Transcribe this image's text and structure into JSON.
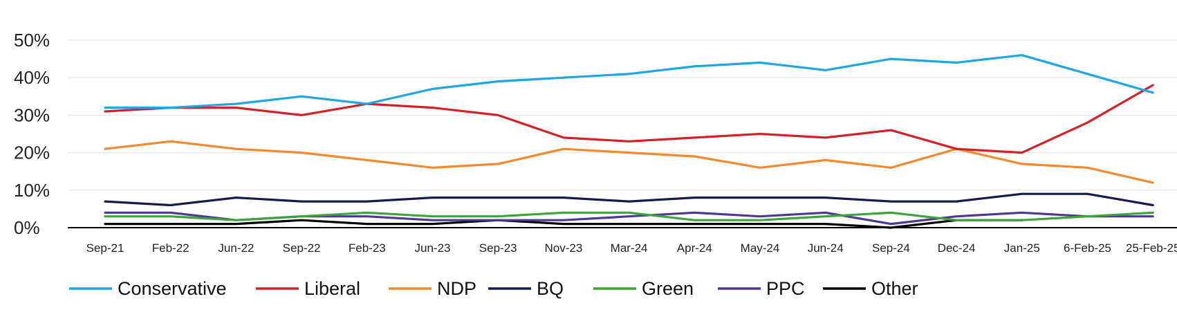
{
  "chart_data": {
    "type": "line",
    "title": "",
    "xlabel": "",
    "ylabel": "",
    "ylim": [
      0,
      50
    ],
    "y_ticks": [
      "0%",
      "10%",
      "20%",
      "30%",
      "40%",
      "50%"
    ],
    "y_tick_values": [
      0,
      10,
      20,
      30,
      40,
      50
    ],
    "grid": true,
    "legend_position": "bottom",
    "categories": [
      "Sep-21",
      "Feb-22",
      "Jun-22",
      "Sep-22",
      "Feb-23",
      "Jun-23",
      "Sep-23",
      "Nov-23",
      "Mar-24",
      "Apr-24",
      "May-24",
      "Jun-24",
      "Sep-24",
      "Dec-24",
      "Jan-25",
      "6-Feb-25",
      "25-Feb-25"
    ],
    "series": [
      {
        "name": "Conservative",
        "color": "#1ea7e1",
        "values": [
          32,
          32,
          33,
          35,
          33,
          37,
          39,
          40,
          41,
          43,
          44,
          42,
          45,
          44,
          46,
          41,
          36
        ]
      },
      {
        "name": "Liberal",
        "color": "#d62027",
        "values": [
          31,
          32,
          32,
          30,
          33,
          32,
          30,
          24,
          23,
          24,
          25,
          24,
          26,
          21,
          20,
          28,
          38
        ]
      },
      {
        "name": "NDP",
        "color": "#f58a2c",
        "values": [
          21,
          23,
          21,
          20,
          18,
          16,
          17,
          21,
          20,
          19,
          16,
          18,
          16,
          21,
          17,
          16,
          12
        ]
      },
      {
        "name": "BQ",
        "color": "#161b4e",
        "values": [
          7,
          6,
          8,
          7,
          7,
          8,
          8,
          8,
          7,
          8,
          8,
          8,
          7,
          7,
          9,
          9,
          6
        ]
      },
      {
        "name": "Green",
        "color": "#3ca53a",
        "values": [
          3,
          3,
          2,
          3,
          4,
          3,
          3,
          4,
          4,
          2,
          2,
          3,
          4,
          2,
          2,
          3,
          4
        ]
      },
      {
        "name": "PPC",
        "color": "#4e3792",
        "values": [
          4,
          4,
          2,
          3,
          3,
          2,
          2,
          2,
          3,
          4,
          3,
          4,
          1,
          3,
          4,
          3,
          3
        ]
      },
      {
        "name": "Other",
        "color": "#000000",
        "values": [
          1,
          1,
          1,
          2,
          1,
          1,
          2,
          1,
          1,
          1,
          1,
          1,
          0,
          2,
          2,
          null,
          null
        ]
      }
    ]
  }
}
